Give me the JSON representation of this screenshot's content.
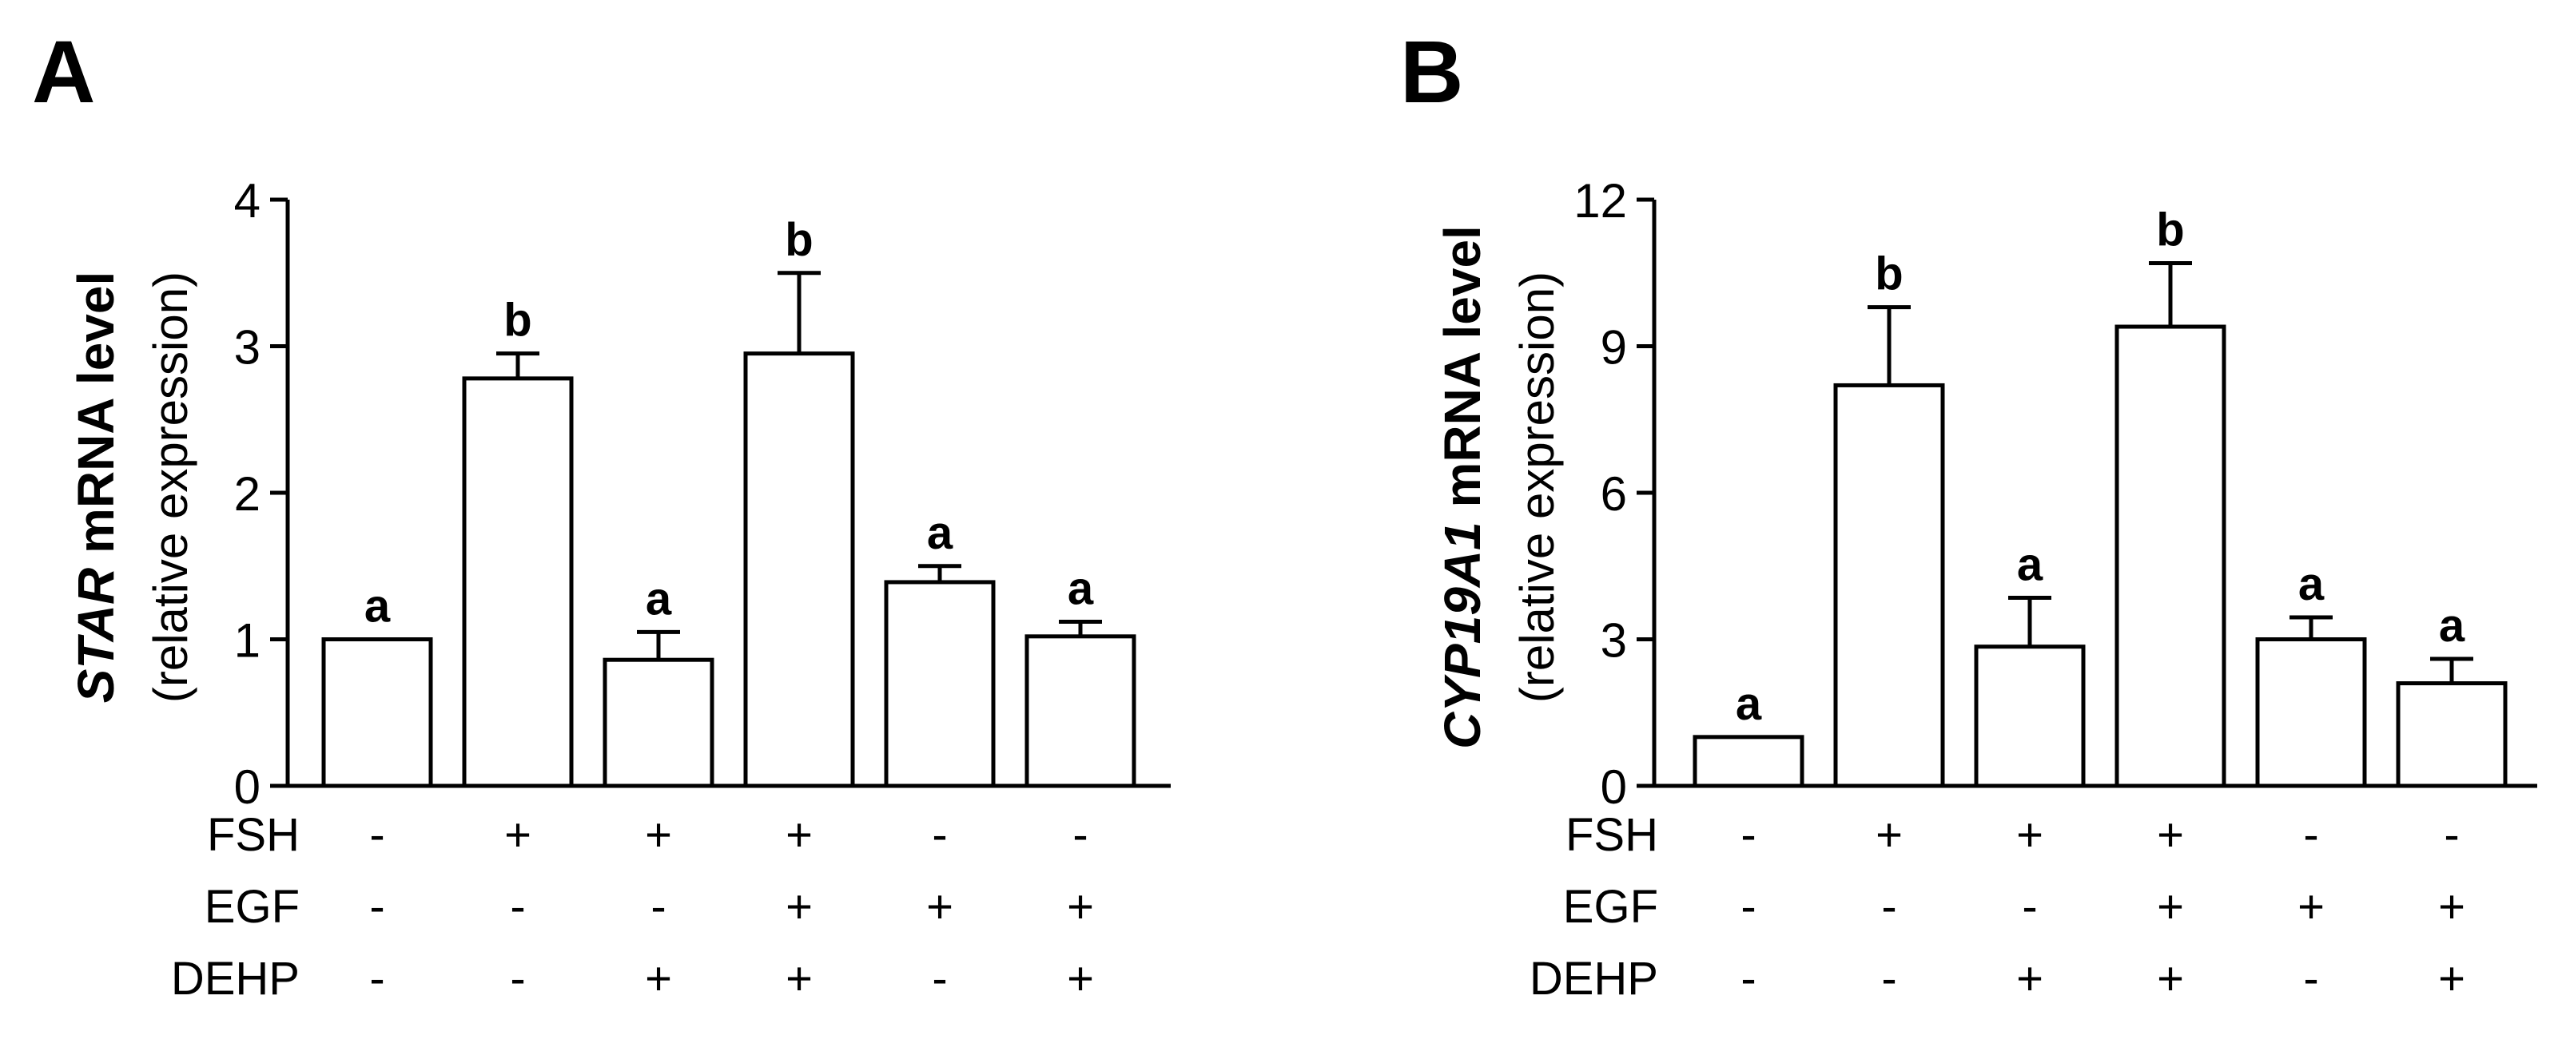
{
  "chart_data": [
    {
      "type": "bar",
      "panel": "A",
      "ylabel_gene": "STAR",
      "ylabel_rest": " mRNA level",
      "ylabel_line2": "(relative expression)",
      "ylim": [
        0,
        4
      ],
      "yticks": [
        "0",
        "1",
        "2",
        "3",
        "4"
      ],
      "values": [
        1.0,
        2.78,
        0.86,
        2.95,
        1.39,
        1.02
      ],
      "errors": [
        0,
        0.17,
        0.19,
        0.55,
        0.11,
        0.1
      ],
      "letters": [
        "a",
        "b",
        "a",
        "b",
        "a",
        "a"
      ],
      "treatments": [
        {
          "name": "FSH",
          "signs": [
            "-",
            "+",
            "+",
            "+",
            "-",
            "-"
          ]
        },
        {
          "name": "EGF",
          "signs": [
            "-",
            "-",
            "-",
            "+",
            "+",
            "+"
          ]
        },
        {
          "name": "DEHP",
          "signs": [
            "-",
            "-",
            "+",
            "+",
            "-",
            "+"
          ]
        }
      ]
    },
    {
      "type": "bar",
      "panel": "B",
      "ylabel_gene": "CYP19A1",
      "ylabel_rest": " mRNA level",
      "ylabel_line2": "(relative expression)",
      "ylim": [
        0,
        12
      ],
      "yticks": [
        "0",
        "3",
        "6",
        "9",
        "12"
      ],
      "values": [
        1.0,
        8.2,
        2.85,
        9.4,
        3.0,
        2.1
      ],
      "errors": [
        0,
        1.6,
        1.0,
        1.3,
        0.45,
        0.5
      ],
      "letters": [
        "a",
        "b",
        "a",
        "b",
        "a",
        "a"
      ],
      "treatments": [
        {
          "name": "FSH",
          "signs": [
            "-",
            "+",
            "+",
            "+",
            "-",
            "-"
          ]
        },
        {
          "name": "EGF",
          "signs": [
            "-",
            "-",
            "-",
            "+",
            "+",
            "+"
          ]
        },
        {
          "name": "DEHP",
          "signs": [
            "-",
            "-",
            "+",
            "+",
            "-",
            "+"
          ]
        }
      ]
    }
  ]
}
